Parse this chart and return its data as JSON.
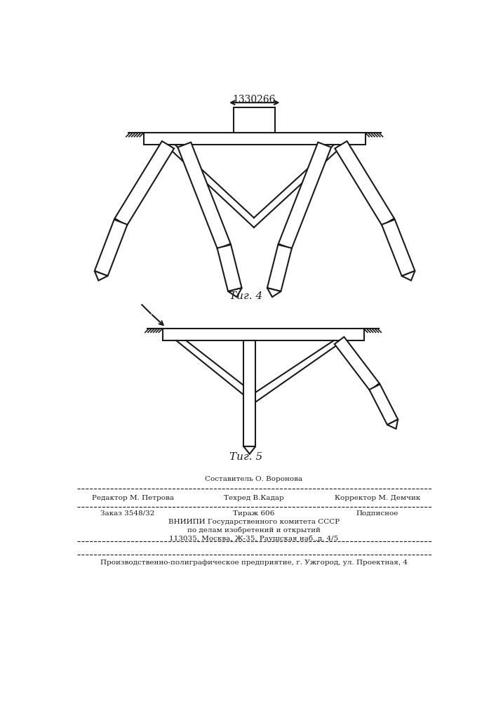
{
  "title": "1330266",
  "fig4_label": "Τиг. 4",
  "fig5_label": "Τиг. 5",
  "footer_line1": "Составитель О. Воронова",
  "footer_line2a": "Редактор М. Петрова",
  "footer_line2b": "Техред В.Кадар",
  "footer_line2c": "Корректор М. Демчик",
  "footer_line3a": "Заказ 3548/32",
  "footer_line3b": "Тираж 606",
  "footer_line3c": "Подписное",
  "footer_line4": "ВНИИПИ Государственного комитета СССР",
  "footer_line5": "по делам изобретений и открытий",
  "footer_line6": "113035, Москва, Ж-35, Раушская наб.,д. 4/5",
  "footer_line7": "Производственно-полиграфическое предприятие, г. Ужгород, ул. Проектная, 4",
  "bg_color": "#ffffff",
  "line_color": "#1a1a1a",
  "line_width": 1.5
}
